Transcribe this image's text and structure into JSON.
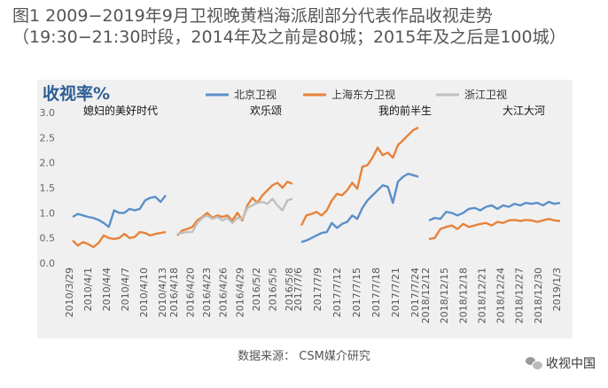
{
  "figure": {
    "title": "图1  2009−2019年9月卫视晚黄档海派剧部分代表作品收视走势（19:30−21:30时段，2014年及之前是80城；2015年及之后是100城）",
    "source": "数据来源：  CSM媒介研究",
    "brand": "收视中国"
  },
  "chart_data": {
    "type": "line",
    "title": "收视率%",
    "ylim": [
      0,
      3.0
    ],
    "yticks": [
      "0.0",
      "0.5",
      "1.0",
      "1.5",
      "2.0",
      "2.5",
      "3.0"
    ],
    "grid": false,
    "legend_position": "top",
    "legend": [
      {
        "name": "北京卫视",
        "color": "#5b8fc9"
      },
      {
        "name": "上海东方卫视",
        "color": "#e8823a"
      },
      {
        "name": "浙江卫视",
        "color": "#bfbfbf"
      }
    ],
    "groups": [
      {
        "drama": "媳妇的美好时代",
        "ticks": [
          "2010/3/29",
          "2010/4/1",
          "2010/4/4",
          "2010/4/7",
          "2010/4/10",
          "2010/4/13"
        ],
        "series": [
          {
            "name": "北京卫视",
            "color": "#5b8fc9",
            "values": [
              0.92,
              0.98,
              0.95,
              0.92,
              0.9,
              0.86,
              0.8,
              0.72,
              1.05,
              1.0,
              1.0,
              1.08,
              1.05,
              1.08,
              1.25,
              1.3,
              1.32,
              1.22,
              1.35
            ]
          },
          {
            "name": "上海东方卫视",
            "color": "#e8823a",
            "values": [
              0.45,
              0.35,
              0.42,
              0.38,
              0.32,
              0.4,
              0.55,
              0.5,
              0.48,
              0.5,
              0.58,
              0.5,
              0.52,
              0.62,
              0.6,
              0.55,
              0.58,
              0.6,
              0.62
            ]
          }
        ]
      },
      {
        "drama": "欢乐颂",
        "ticks": [
          "2016/4/18",
          "2016/4/20",
          "2016/4/23",
          "2016/4/26",
          "2016/4/29",
          "2016/5/2",
          "2016/5/5",
          "2016/5/8"
        ],
        "series": [
          {
            "name": "上海东方卫视",
            "color": "#e8823a",
            "values": [
              0.55,
              0.65,
              0.68,
              0.72,
              0.85,
              0.92,
              1.0,
              0.9,
              0.95,
              0.92,
              0.95,
              0.85,
              1.0,
              0.85,
              1.15,
              1.3,
              1.2,
              1.35,
              1.45,
              1.55,
              1.6,
              1.5,
              1.62,
              1.58
            ]
          },
          {
            "name": "浙江卫视",
            "color": "#bfbfbf",
            "values": [
              0.58,
              0.6,
              0.62,
              0.62,
              0.8,
              0.9,
              0.95,
              0.88,
              0.92,
              0.85,
              0.9,
              0.8,
              0.9,
              0.88,
              1.1,
              1.15,
              1.2,
              1.22,
              1.18,
              1.28,
              1.15,
              1.05,
              1.25,
              1.28
            ]
          }
        ]
      },
      {
        "drama": "我的前半生",
        "ticks": [
          "2017/7/6",
          "2017/7/9",
          "2017/7/12",
          "2017/7/15",
          "2017/7/18",
          "2017/7/21",
          "2017/7/24"
        ],
        "series": [
          {
            "name": "北京卫视",
            "color": "#5b8fc9",
            "values": [
              0.42,
              0.45,
              0.5,
              0.55,
              0.6,
              0.62,
              0.8,
              0.7,
              0.78,
              0.82,
              0.95,
              0.88,
              1.1,
              1.25,
              1.35,
              1.45,
              1.55,
              1.52,
              1.2,
              1.62,
              1.72,
              1.78,
              1.75,
              1.72
            ]
          },
          {
            "name": "上海东方卫视",
            "color": "#e8823a",
            "values": [
              0.75,
              0.95,
              0.98,
              1.02,
              0.95,
              1.05,
              1.25,
              1.38,
              1.35,
              1.45,
              1.6,
              1.48,
              1.92,
              1.95,
              2.1,
              2.3,
              2.15,
              2.2,
              2.1,
              2.35,
              2.45,
              2.55,
              2.65,
              2.7
            ]
          }
        ]
      },
      {
        "drama": "大江大河",
        "ticks": [
          "2018/12/12",
          "2018/12/15",
          "2018/12/18",
          "2018/12/21",
          "2018/12/24",
          "2018/12/27",
          "2018/12/30",
          "2019/1/3"
        ],
        "series": [
          {
            "name": "北京卫视",
            "color": "#5b8fc9",
            "values": [
              0.85,
              0.9,
              0.88,
              1.02,
              1.0,
              0.95,
              1.0,
              1.08,
              1.1,
              1.05,
              1.12,
              1.15,
              1.08,
              1.15,
              1.12,
              1.18,
              1.15,
              1.2,
              1.18,
              1.2,
              1.15,
              1.22,
              1.18,
              1.2
            ]
          },
          {
            "name": "上海东方卫视",
            "color": "#e8823a",
            "values": [
              0.48,
              0.5,
              0.68,
              0.72,
              0.75,
              0.68,
              0.78,
              0.72,
              0.75,
              0.78,
              0.8,
              0.75,
              0.82,
              0.8,
              0.85,
              0.86,
              0.84,
              0.86,
              0.85,
              0.82,
              0.85,
              0.88,
              0.85,
              0.84
            ]
          }
        ]
      }
    ]
  }
}
